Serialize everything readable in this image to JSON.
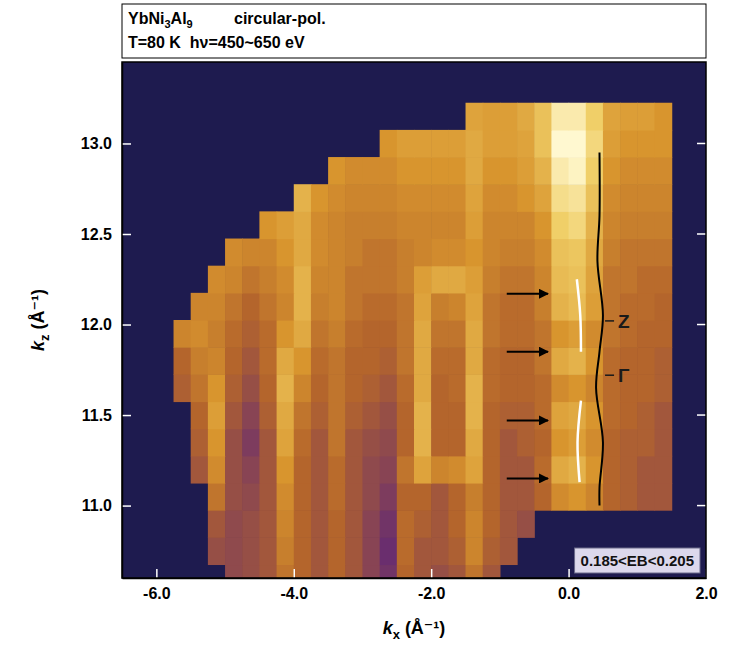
{
  "chart_data": {
    "type": "heatmap",
    "header": {
      "sample": "YbNi3Al9",
      "polarization": "circular-pol.",
      "conditions": "T=80 K  hν=450~650 eV"
    },
    "xlabel": "kx (Å⁻¹)",
    "ylabel": "kz (Å⁻¹)",
    "xlim": [
      -6.5,
      2.0
    ],
    "ylim": [
      10.6,
      13.45
    ],
    "xticks": [
      {
        "value": -6,
        "label": "-6.0"
      },
      {
        "value": -4,
        "label": "-4.0"
      },
      {
        "value": -2,
        "label": "-2.0"
      },
      {
        "value": 0,
        "label": "0.0"
      },
      {
        "value": 2,
        "label": "2.0"
      }
    ],
    "yticks": [
      {
        "value": 11,
        "label": "11.0"
      },
      11.5,
      {
        "value": 12,
        "label": "12.0"
      },
      12.5,
      {
        "value": 13,
        "label": "13.0"
      }
    ],
    "zlim": [
      0,
      1
    ],
    "x": [
      -6.375,
      -6.125,
      -5.875,
      -5.625,
      -5.375,
      -5.125,
      -4.875,
      -4.625,
      -4.375,
      -4.125,
      -3.875,
      -3.625,
      -3.375,
      -3.125,
      -2.875,
      -2.625,
      -2.375,
      -2.125,
      -1.875,
      -1.625,
      -1.375,
      -1.125,
      -0.875,
      -0.625,
      -0.375,
      -0.125,
      0.125,
      0.375,
      0.625,
      0.875,
      1.125,
      1.375,
      1.625,
      1.875
    ],
    "y": [
      10.6,
      10.75,
      10.9,
      11.05,
      11.2,
      11.35,
      11.5,
      11.65,
      11.8,
      11.95,
      12.1,
      12.25,
      12.4,
      12.55,
      12.7,
      12.85,
      13.0,
      13.15
    ],
    "values": [
      [
        null,
        null,
        null,
        null,
        null,
        null,
        0.4,
        0.42,
        0.45,
        0.55,
        0.5,
        0.45,
        0.5,
        0.45,
        0.38,
        0.32,
        0.5,
        0.45,
        0.42,
        0.45,
        0.55,
        0.45,
        null,
        null,
        null,
        null,
        null,
        null,
        null,
        null,
        null,
        null,
        null,
        null
      ],
      [
        null,
        null,
        null,
        null,
        null,
        0.42,
        0.4,
        0.42,
        0.45,
        0.58,
        0.5,
        0.45,
        0.5,
        0.45,
        0.38,
        0.3,
        0.52,
        0.45,
        0.45,
        0.48,
        0.6,
        0.48,
        0.45,
        null,
        null,
        null,
        null,
        null,
        null,
        null,
        null,
        null,
        null,
        null
      ],
      [
        null,
        null,
        null,
        null,
        null,
        0.45,
        0.4,
        0.42,
        0.45,
        0.6,
        0.5,
        0.45,
        0.5,
        0.45,
        0.38,
        0.32,
        0.52,
        0.48,
        0.45,
        0.5,
        0.6,
        0.5,
        0.45,
        0.42,
        null,
        null,
        null,
        null,
        null,
        null,
        null,
        null,
        null,
        null
      ],
      [
        null,
        null,
        null,
        null,
        null,
        0.55,
        0.42,
        0.4,
        0.45,
        0.62,
        0.5,
        0.45,
        0.52,
        0.45,
        0.4,
        0.35,
        0.5,
        0.5,
        0.45,
        0.5,
        0.58,
        0.5,
        0.45,
        0.45,
        0.5,
        0.62,
        0.65,
        0.6,
        0.5,
        0.48,
        0.45,
        0.45,
        null,
        null
      ],
      [
        null,
        null,
        null,
        null,
        0.45,
        0.62,
        0.42,
        0.38,
        0.45,
        0.65,
        0.5,
        0.45,
        0.52,
        0.45,
        0.4,
        0.38,
        0.55,
        0.7,
        0.6,
        0.62,
        0.7,
        0.5,
        0.45,
        0.45,
        0.52,
        0.72,
        0.75,
        0.65,
        0.5,
        0.48,
        0.45,
        0.45,
        null,
        null
      ],
      [
        null,
        null,
        null,
        null,
        0.48,
        0.65,
        0.42,
        0.35,
        0.45,
        0.7,
        0.52,
        0.45,
        0.55,
        0.45,
        0.42,
        0.4,
        0.5,
        0.75,
        0.5,
        0.5,
        0.72,
        0.5,
        0.45,
        0.48,
        0.5,
        0.65,
        0.68,
        0.62,
        0.5,
        0.48,
        0.48,
        0.45,
        null,
        null
      ],
      [
        null,
        null,
        null,
        null,
        0.5,
        0.68,
        0.45,
        0.38,
        0.48,
        0.72,
        0.55,
        0.48,
        0.55,
        0.48,
        0.45,
        0.42,
        0.5,
        0.75,
        0.5,
        0.5,
        0.75,
        0.5,
        0.48,
        0.48,
        0.52,
        0.7,
        0.72,
        0.65,
        0.52,
        0.5,
        0.48,
        0.45,
        null,
        null
      ],
      [
        null,
        null,
        null,
        0.48,
        0.55,
        0.65,
        0.48,
        0.42,
        0.5,
        0.75,
        0.6,
        0.5,
        0.55,
        0.5,
        0.48,
        0.45,
        0.52,
        0.72,
        0.5,
        0.52,
        0.75,
        0.52,
        0.5,
        0.5,
        0.52,
        0.62,
        0.65,
        0.6,
        0.52,
        0.5,
        0.5,
        0.48,
        null,
        null
      ],
      [
        null,
        null,
        null,
        0.5,
        0.58,
        0.6,
        0.5,
        0.45,
        0.52,
        0.72,
        0.65,
        0.52,
        0.55,
        0.5,
        0.5,
        0.48,
        0.55,
        0.72,
        0.52,
        0.52,
        0.72,
        0.52,
        0.5,
        0.5,
        0.55,
        0.72,
        0.75,
        0.65,
        0.52,
        0.5,
        0.5,
        0.48,
        null,
        null
      ],
      [
        null,
        null,
        null,
        0.6,
        0.62,
        0.58,
        0.52,
        0.48,
        0.52,
        0.65,
        0.72,
        0.55,
        0.58,
        0.52,
        0.5,
        0.5,
        0.55,
        0.72,
        0.55,
        0.55,
        0.72,
        0.55,
        0.52,
        0.52,
        0.55,
        0.65,
        0.68,
        0.62,
        0.55,
        0.52,
        0.5,
        0.5,
        null,
        null
      ],
      [
        null,
        null,
        null,
        null,
        0.6,
        0.6,
        0.55,
        0.5,
        0.55,
        0.6,
        0.75,
        0.58,
        0.6,
        0.55,
        0.52,
        0.52,
        0.55,
        0.7,
        0.58,
        0.6,
        0.7,
        0.55,
        0.52,
        0.52,
        0.58,
        0.75,
        0.78,
        0.68,
        0.55,
        0.52,
        0.52,
        0.5,
        null,
        null
      ],
      [
        null,
        null,
        null,
        null,
        null,
        0.62,
        0.6,
        0.55,
        0.58,
        0.62,
        0.75,
        0.6,
        0.6,
        0.55,
        0.55,
        0.55,
        0.58,
        0.68,
        0.72,
        0.72,
        0.68,
        0.58,
        0.55,
        0.55,
        0.6,
        0.78,
        0.8,
        0.7,
        0.55,
        0.55,
        0.52,
        0.52,
        null,
        null
      ],
      [
        null,
        null,
        null,
        null,
        null,
        null,
        0.62,
        0.6,
        0.6,
        0.65,
        0.72,
        0.62,
        0.6,
        0.58,
        0.55,
        0.55,
        0.58,
        0.6,
        0.62,
        0.62,
        0.65,
        0.6,
        0.58,
        0.58,
        0.62,
        0.8,
        0.82,
        0.72,
        0.58,
        0.55,
        0.55,
        0.55,
        null,
        null
      ],
      [
        null,
        null,
        null,
        null,
        null,
        null,
        null,
        null,
        0.65,
        0.68,
        0.72,
        0.62,
        0.6,
        0.58,
        0.58,
        0.58,
        0.6,
        0.6,
        0.6,
        0.6,
        0.68,
        0.6,
        0.6,
        0.6,
        0.65,
        0.85,
        0.88,
        0.75,
        0.6,
        0.58,
        0.58,
        0.58,
        null,
        null
      ],
      [
        null,
        null,
        null,
        null,
        null,
        null,
        null,
        null,
        null,
        null,
        0.75,
        0.65,
        0.62,
        0.6,
        0.6,
        0.6,
        0.62,
        0.62,
        0.62,
        0.62,
        0.7,
        0.62,
        0.62,
        0.65,
        0.7,
        0.9,
        0.92,
        0.8,
        0.62,
        0.6,
        0.6,
        0.6,
        null,
        null
      ],
      [
        null,
        null,
        null,
        null,
        null,
        null,
        null,
        null,
        null,
        null,
        null,
        null,
        0.65,
        0.62,
        0.62,
        0.62,
        0.65,
        0.65,
        0.65,
        0.65,
        0.72,
        0.65,
        0.65,
        0.68,
        0.75,
        0.95,
        0.98,
        0.85,
        0.65,
        0.62,
        0.62,
        0.62,
        null,
        null
      ],
      [
        null,
        null,
        null,
        null,
        null,
        null,
        null,
        null,
        null,
        null,
        null,
        null,
        null,
        null,
        null,
        0.65,
        0.68,
        0.68,
        0.68,
        0.68,
        0.72,
        0.68,
        0.68,
        0.7,
        0.8,
        1,
        1,
        0.88,
        0.68,
        0.65,
        0.65,
        0.65,
        null,
        null
      ],
      [
        null,
        null,
        null,
        null,
        null,
        null,
        null,
        null,
        null,
        null,
        null,
        null,
        null,
        null,
        null,
        null,
        null,
        null,
        null,
        null,
        0.7,
        0.68,
        0.68,
        0.72,
        0.8,
        0.95,
        0.95,
        0.85,
        0.7,
        0.68,
        0.68,
        0.65,
        null,
        null
      ]
    ],
    "guide_line": {
      "x": [
        0.45,
        0.45,
        0.42,
        0.5,
        0.45,
        0.4,
        0.5,
        0.45,
        0.45
      ],
      "y": [
        12.95,
        12.6,
        12.35,
        12.05,
        11.85,
        11.65,
        11.35,
        11.1,
        11.0
      ]
    },
    "white_curves": [
      {
        "x": [
          0.12,
          0.17,
          0.18
        ],
        "y": [
          12.25,
          12.05,
          11.85
        ]
      },
      {
        "x": [
          0.18,
          0.13,
          0.16
        ],
        "y": [
          11.58,
          11.35,
          11.13
        ]
      }
    ],
    "arrows": [
      {
        "x0": -0.9,
        "x1": -0.3,
        "y": 12.17
      },
      {
        "x0": -0.9,
        "x1": -0.3,
        "y": 11.85
      },
      {
        "x0": -0.9,
        "x1": -0.3,
        "y": 11.47
      },
      {
        "x0": -0.9,
        "x1": -0.3,
        "y": 11.15
      }
    ],
    "annotations": [
      {
        "text": "Z",
        "x": 0.72,
        "y": 12.02
      },
      {
        "text": "Γ",
        "x": 0.72,
        "y": 11.72
      }
    ],
    "energy_window": "0.185<EB<0.205"
  }
}
